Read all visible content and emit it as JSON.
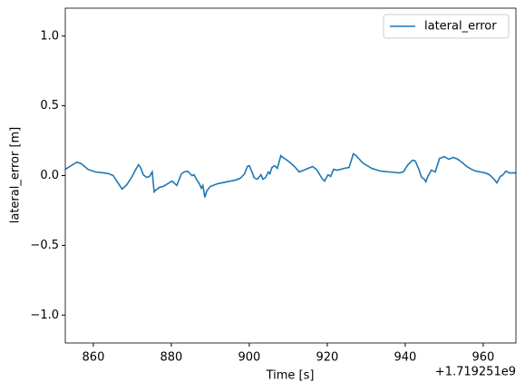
{
  "chart_data": {
    "type": "line",
    "xlabel": "Time [s]",
    "ylabel": "lateral_error [m]",
    "x_offset_label": "+1.719251e9",
    "xlim": [
      852.8,
      968.4
    ],
    "ylim": [
      -1.2,
      1.2
    ],
    "xticks": [
      860,
      880,
      900,
      920,
      940,
      960
    ],
    "yticks": [
      {
        "value": -1.0,
        "label": "−1.0"
      },
      {
        "value": -0.5,
        "label": "−0.5"
      },
      {
        "value": 0.0,
        "label": "0.0"
      },
      {
        "value": 0.5,
        "label": "0.5"
      },
      {
        "value": 1.0,
        "label": "1.0"
      }
    ],
    "legend": "upper right",
    "grid": false,
    "x": [
      852.8,
      854.7,
      855.8,
      857.0,
      858.6,
      860.5,
      862.8,
      864.0,
      865.1,
      866.3,
      867.4,
      868.6,
      869.8,
      870.9,
      871.6,
      872.1,
      872.8,
      873.7,
      874.4,
      875.1,
      875.6,
      876.0,
      877.0,
      877.9,
      879.1,
      880.2,
      881.4,
      882.6,
      883.3,
      884.2,
      885.3,
      885.8,
      886.7,
      887.2,
      887.7,
      888.1,
      888.6,
      889.1,
      890.0,
      891.9,
      894.2,
      896.5,
      897.7,
      898.8,
      899.5,
      900.0,
      900.7,
      901.2,
      901.9,
      902.3,
      903.0,
      903.5,
      904.2,
      904.9,
      905.3,
      905.8,
      906.5,
      907.2,
      908.1,
      908.6,
      910.0,
      911.6,
      912.8,
      914.0,
      915.1,
      916.3,
      917.4,
      918.6,
      919.3,
      920.2,
      920.9,
      921.6,
      922.6,
      924.4,
      925.6,
      926.7,
      927.4,
      929.1,
      931.4,
      933.7,
      936.0,
      938.4,
      939.5,
      940.7,
      941.9,
      942.6,
      943.5,
      944.2,
      944.9,
      945.3,
      945.8,
      946.7,
      947.7,
      948.8,
      950.0,
      951.2,
      952.3,
      953.5,
      954.7,
      955.8,
      957.0,
      958.1,
      959.3,
      960.5,
      961.6,
      962.8,
      963.5,
      964.4,
      965.1,
      965.8,
      966.7,
      968.4
    ],
    "series": [
      {
        "name": "lateral_error",
        "color": "#1f77b4",
        "values": [
          0.045,
          0.078,
          0.097,
          0.084,
          0.045,
          0.026,
          0.019,
          0.013,
          0.0,
          -0.052,
          -0.097,
          -0.065,
          -0.013,
          0.045,
          0.078,
          0.058,
          0.006,
          -0.013,
          -0.006,
          0.026,
          -0.117,
          -0.104,
          -0.084,
          -0.078,
          -0.058,
          -0.039,
          -0.071,
          0.013,
          0.026,
          0.032,
          0.0,
          0.006,
          -0.039,
          -0.058,
          -0.091,
          -0.071,
          -0.156,
          -0.11,
          -0.078,
          -0.058,
          -0.045,
          -0.032,
          -0.019,
          0.013,
          0.065,
          0.071,
          0.026,
          -0.013,
          -0.026,
          -0.019,
          0.006,
          -0.026,
          -0.013,
          0.026,
          0.013,
          0.058,
          0.071,
          0.052,
          0.143,
          0.13,
          0.104,
          0.065,
          0.026,
          0.039,
          0.052,
          0.065,
          0.039,
          -0.019,
          -0.039,
          0.006,
          -0.006,
          0.045,
          0.039,
          0.052,
          0.058,
          0.156,
          0.143,
          0.091,
          0.052,
          0.032,
          0.026,
          0.019,
          0.026,
          0.078,
          0.11,
          0.104,
          0.045,
          -0.013,
          -0.026,
          -0.045,
          -0.006,
          0.039,
          0.026,
          0.123,
          0.136,
          0.117,
          0.13,
          0.117,
          0.091,
          0.065,
          0.045,
          0.032,
          0.026,
          0.019,
          0.006,
          -0.026,
          -0.052,
          -0.006,
          0.006,
          0.032,
          0.019,
          0.019
        ]
      }
    ]
  }
}
